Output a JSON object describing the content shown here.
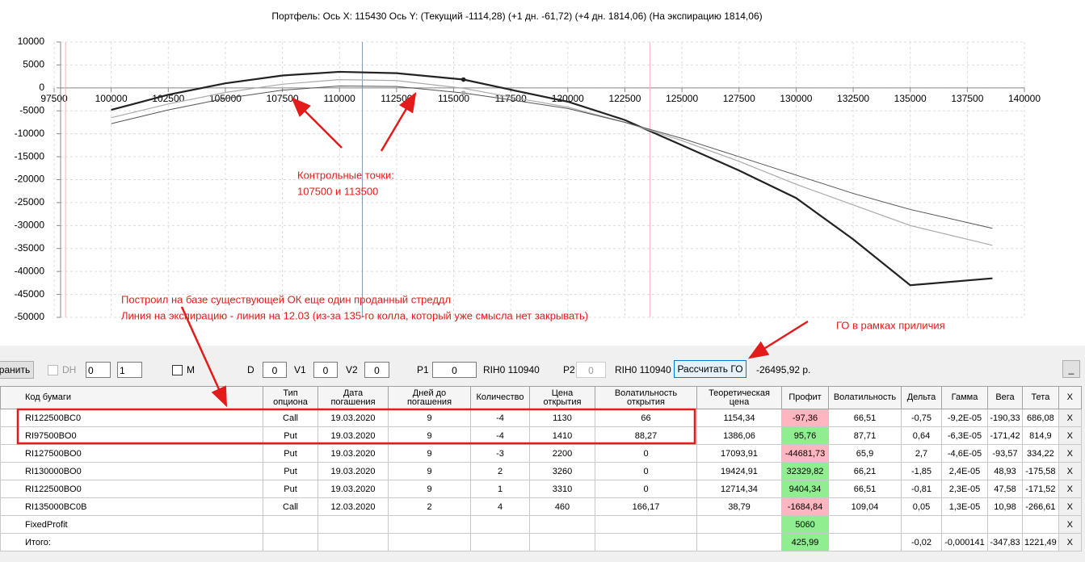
{
  "chart_data": {
    "type": "line",
    "title": "Портфель: Ось X:  115430 Ось Y:  (Текущий -1114,28)  (+1 дн. -61,72)  (+4 дн. 1814,06)  (На экспирацию 1814,06)",
    "x": [
      100000,
      102500,
      105000,
      107500,
      110000,
      112500,
      115430,
      117500,
      120000,
      122500,
      125000,
      127500,
      130000,
      132500,
      135000,
      138600
    ],
    "series": [
      {
        "color": "#222222",
        "line_width": 2.2,
        "values": [
          -4800,
          -1500,
          1000,
          2700,
          3500,
          3200,
          1814,
          -400,
          -3000,
          -7000,
          -12500,
          -18000,
          -24000,
          -33000,
          -43000,
          -41500
        ]
      },
      {
        "color": "#aaaaaa",
        "line_width": 1.2,
        "values": [
          -6500,
          -3500,
          -1000,
          800,
          1800,
          1600,
          -100,
          -2000,
          -4200,
          -7500,
          -11500,
          -16000,
          -21000,
          -25500,
          -30000,
          -34300
        ]
      },
      {
        "color": "#555555",
        "line_width": 1,
        "values": [
          -7800,
          -4800,
          -2300,
          -500,
          400,
          300,
          -1100,
          -2600,
          -4500,
          -7500,
          -11000,
          -15000,
          -19000,
          -23000,
          -26500,
          -30600
        ]
      }
    ],
    "markers": [
      {
        "x": 115430,
        "y": 1814.06
      },
      {
        "x": 115430,
        "y": -1114.28
      }
    ],
    "vlines": [
      {
        "x": 98000,
        "color": "#f4b6c2"
      },
      {
        "x": 111000,
        "color": "#7f9db9"
      },
      {
        "x": 123600,
        "color": "#f4b6c2"
      }
    ],
    "xlim": [
      97500,
      140000
    ],
    "ylim": [
      -50000,
      10000
    ],
    "xticks": [
      97500,
      100000,
      102500,
      105000,
      107500,
      110000,
      112500,
      115000,
      117500,
      120000,
      122500,
      125000,
      127500,
      130000,
      132500,
      135000,
      137500,
      140000
    ],
    "yticks": [
      10000,
      5000,
      0,
      -5000,
      -10000,
      -15000,
      -20000,
      -25000,
      -30000,
      -35000,
      -40000,
      -45000,
      -50000
    ],
    "grid": true,
    "annotations": [
      {
        "lines": [
          "Контрольные точки:",
          "107500 и 113500"
        ]
      },
      {
        "lines": [
          "Построил на базе существующей ОК еще один проданный стреддл",
          "Линия на экспирацию - линия на 12.03 (из-за 135-го колла, который уже смысла нет закрывать)"
        ]
      },
      {
        "lines": [
          "ГО в рамках приличия"
        ]
      }
    ]
  },
  "toolbar": {
    "save": "ранить",
    "dh": "DH",
    "spin1": "0",
    "spin2": "1",
    "m": "M",
    "d_label": "D",
    "d": "0",
    "v1_label": "V1",
    "v1": "0",
    "v2_label": "V2",
    "v2": "0",
    "p1_label": "P1",
    "p1": "0",
    "p1_code": "RIH0 110940",
    "p2_label": "P2",
    "p2": "0",
    "p2_code": "RIH0 110940",
    "calc": "Рассчитать ГО",
    "go": "-26495,92 р.",
    "minimize": "_"
  },
  "table": {
    "headers": [
      "Код бумаги",
      "Тип опциона",
      "Дата погашения",
      "Дней до погашения",
      "Количество",
      "Цена открытия",
      "Волатильность открытия",
      "Теоретическая цена",
      "Профит",
      "Волатильность",
      "Дельта",
      "Гамма",
      "Вега",
      "Тета",
      "X"
    ],
    "rows": [
      [
        "RI122500BC0",
        "Call",
        "19.03.2020",
        "9",
        "-4",
        "1130",
        "66",
        "1154,34",
        "-97,36",
        "66,51",
        "-0,75",
        "-9,2E-05",
        "-190,33",
        "686,08",
        "X"
      ],
      [
        "RI97500BO0",
        "Put",
        "19.03.2020",
        "9",
        "-4",
        "1410",
        "88,27",
        "1386,06",
        "95,76",
        "87,71",
        "0,64",
        "-6,3E-05",
        "-171,42",
        "814,9",
        "X"
      ],
      [
        "RI127500BO0",
        "Put",
        "19.03.2020",
        "9",
        "-3",
        "2200",
        "0",
        "17093,91",
        "-44681,73",
        "65,9",
        "2,7",
        "-4,6E-05",
        "-93,57",
        "334,22",
        "X"
      ],
      [
        "RI130000BO0",
        "Put",
        "19.03.2020",
        "9",
        "2",
        "3260",
        "0",
        "19424,91",
        "32329,82",
        "66,21",
        "-1,85",
        "2,4E-05",
        "48,93",
        "-175,58",
        "X"
      ],
      [
        "RI122500BO0",
        "Put",
        "19.03.2020",
        "9",
        "1",
        "3310",
        "0",
        "12714,34",
        "9404,34",
        "66,51",
        "-0,81",
        "2,3E-05",
        "47,58",
        "-171,52",
        "X"
      ],
      [
        "RI135000BC0B",
        "Call",
        "12.03.2020",
        "2",
        "4",
        "460",
        "166,17",
        "38,79",
        "-1684,84",
        "109,04",
        "0,05",
        "1,3E-05",
        "10,98",
        "-266,61",
        "X"
      ],
      [
        "FixedProfit",
        null,
        null,
        null,
        null,
        null,
        null,
        null,
        "5060",
        null,
        null,
        null,
        null,
        null,
        "X"
      ],
      [
        "Итого:",
        null,
        null,
        null,
        null,
        null,
        null,
        null,
        "425,99",
        null,
        "-0,02",
        "-0,000141",
        "-347,83",
        "1221,49",
        "X"
      ]
    ]
  }
}
